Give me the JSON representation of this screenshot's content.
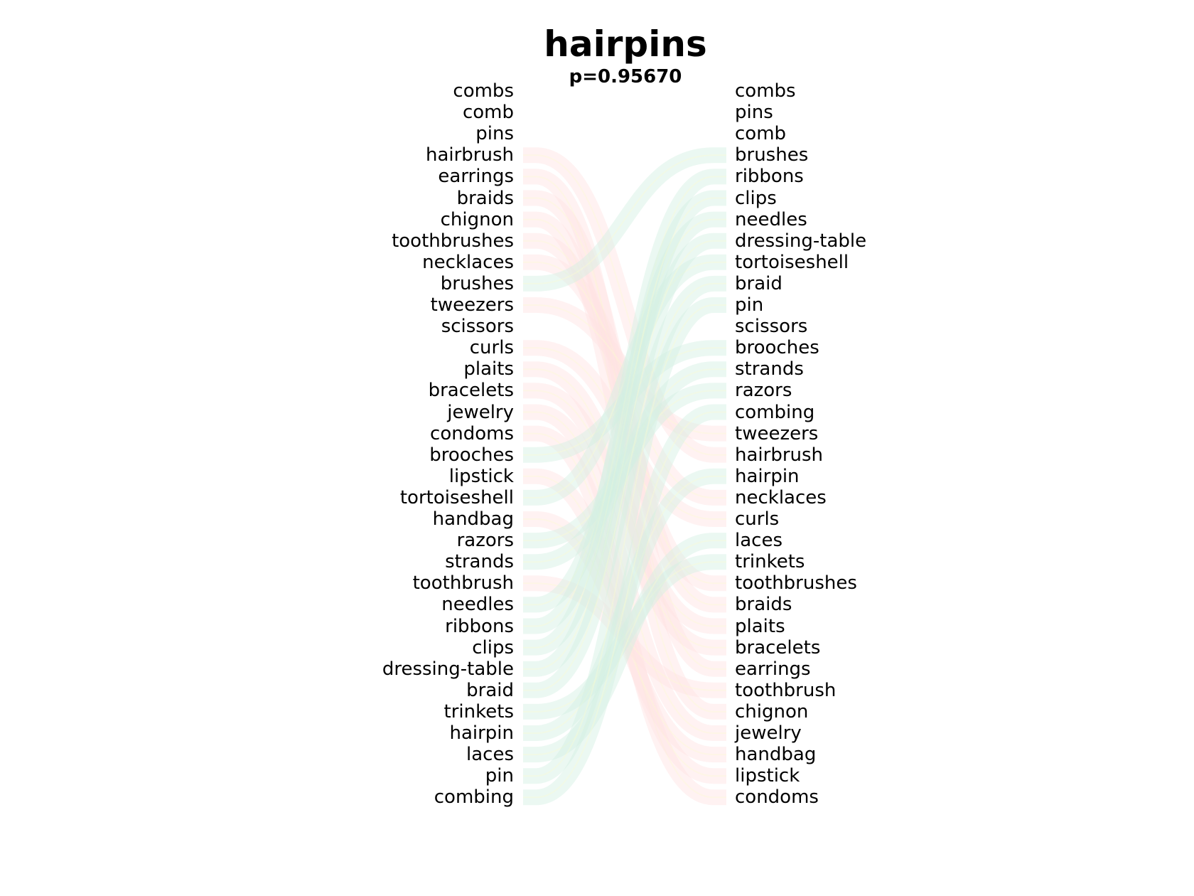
{
  "title": "hairpins",
  "subtitle": "p=0.95670",
  "left_words": [
    "combs",
    "comb",
    "pins",
    "hairbrush",
    "earrings",
    "braids",
    "chignon",
    "toothbrushes",
    "necklaces",
    "brushes",
    "tweezers",
    "scissors",
    "curls",
    "plaits",
    "bracelets",
    "jewelry",
    "condoms",
    "brooches",
    "lipstick",
    "tortoiseshell",
    "handbag",
    "razors",
    "strands",
    "toothbrush",
    "needles",
    "ribbons",
    "clips",
    "dressing-table",
    "braid",
    "trinkets",
    "hairpin",
    "laces",
    "pin",
    "combing"
  ],
  "right_words": [
    "combs",
    "pins",
    "comb",
    "brushes",
    "ribbons",
    "clips",
    "needles",
    "dressing-table",
    "tortoiseshell",
    "braid",
    "pin",
    "scissors",
    "brooches",
    "strands",
    "razors",
    "combing",
    "tweezers",
    "hairbrush",
    "hairpin",
    "necklaces",
    "curls",
    "laces",
    "trinkets",
    "toothbrushes",
    "braids",
    "plaits",
    "bracelets",
    "earrings",
    "toothbrush",
    "chignon",
    "jewelry",
    "handbag",
    "lipstick",
    "condoms"
  ],
  "colors": {
    "down_ribbon": "#ffe3e3",
    "up_ribbon": "#d3efe2",
    "mid_ribbon": "#fbfbd0"
  }
}
